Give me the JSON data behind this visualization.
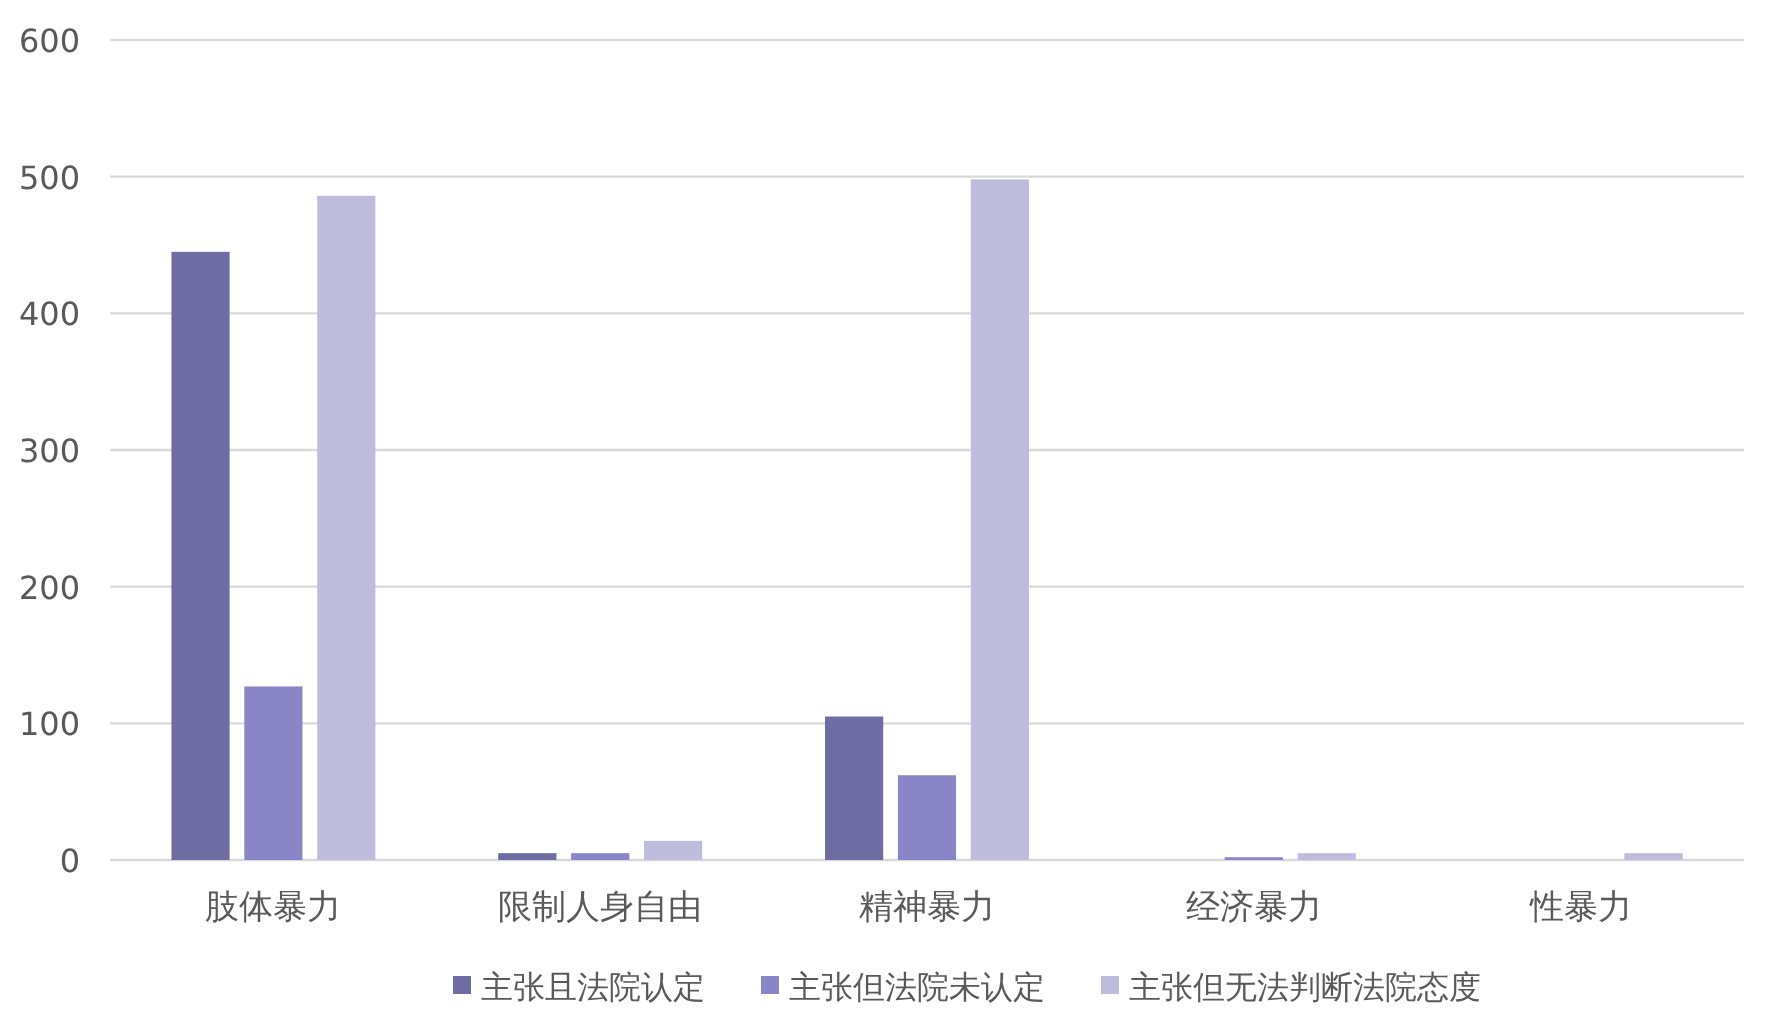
{
  "chart_data": {
    "type": "bar",
    "categories": [
      "肢体暴力",
      "限制人身自由",
      "精神暴力",
      "经济暴力",
      "性暴力"
    ],
    "series": [
      {
        "name": "主张且法院认定",
        "color": "#6f6ca3",
        "values": [
          445,
          5,
          105,
          0,
          0
        ]
      },
      {
        "name": "主张但法院未认定",
        "color": "#8985c6",
        "values": [
          127,
          5,
          62,
          2,
          0
        ]
      },
      {
        "name": "主张但无法判断法院态度",
        "color": "#bdbcdc",
        "values": [
          486,
          14,
          498,
          5,
          5
        ]
      }
    ],
    "ylim": [
      0,
      600
    ],
    "yticks": [
      0,
      100,
      200,
      300,
      400,
      500,
      600
    ],
    "grid": "y",
    "legend": "bottom"
  }
}
